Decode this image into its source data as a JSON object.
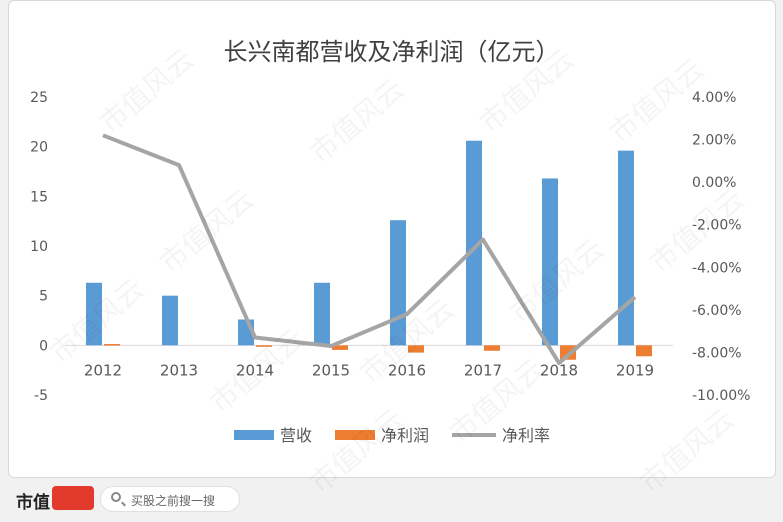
{
  "watermark": "市值风云",
  "footer": {
    "brand": "市值",
    "search_placeholder": "买股之前搜一搜"
  },
  "colors": {
    "revenue": "#5b9bd5",
    "net_profit": "#ed7d31",
    "margin": "#a5a5a5"
  },
  "chart_data": {
    "type": "bar",
    "title": "长兴南都营收及净利润（亿元）",
    "categories": [
      "2012",
      "2013",
      "2014",
      "2015",
      "2016",
      "2017",
      "2018",
      "2019"
    ],
    "series": [
      {
        "name": "营收",
        "type": "bar",
        "axis": "left",
        "values": [
          6.3,
          5.0,
          2.6,
          6.3,
          12.6,
          20.6,
          16.8,
          19.6
        ]
      },
      {
        "name": "净利润",
        "type": "bar",
        "axis": "left",
        "values": [
          0.13,
          0.0,
          -0.1,
          -0.46,
          -0.73,
          -0.55,
          -1.45,
          -1.1
        ]
      },
      {
        "name": "净利率",
        "type": "line",
        "axis": "right",
        "values": [
          2.2,
          0.8,
          -7.3,
          -7.7,
          -6.2,
          -2.7,
          -8.5,
          -5.4
        ]
      }
    ],
    "left_axis": {
      "min": -5,
      "max": 25,
      "ticks": [
        25,
        20,
        15,
        10,
        5,
        0,
        -5
      ],
      "tick_labels": [
        "25",
        "20",
        "15",
        "10",
        "5",
        "0",
        "-5"
      ]
    },
    "right_axis": {
      "min": -10,
      "max": 4,
      "ticks": [
        4,
        2,
        0,
        -2,
        -4,
        -6,
        -8,
        -10
      ],
      "tick_labels": [
        "4.00%",
        "2.00%",
        "0.00%",
        "-2.00%",
        "-4.00%",
        "-6.00%",
        "-8.00%",
        "-10.00%"
      ]
    },
    "legend": {
      "position": "bottom",
      "items": [
        "营收",
        "净利润",
        "净利率"
      ]
    },
    "grid": false
  }
}
